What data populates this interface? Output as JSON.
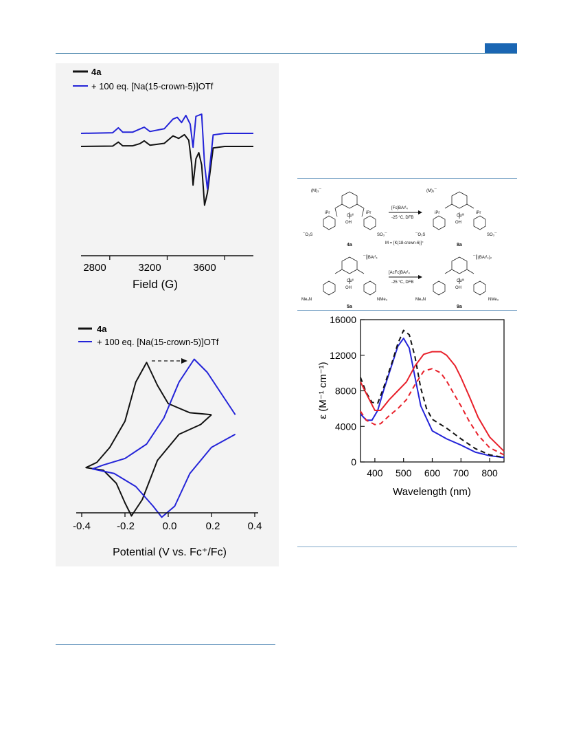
{
  "header": {
    "accent_color": "#1a66b3"
  },
  "epr_chart": {
    "legend": [
      "4a",
      "+ 100 eq. [Na(15-crown-5)]OTf"
    ],
    "xlabel": "Field  (G)",
    "ticks": [
      "2800",
      "3200",
      "3600"
    ]
  },
  "cv_chart": {
    "legend": [
      "4a",
      "+ 100 eq. [Na(15-crown-5)]OTf"
    ],
    "xlabel": "Potential (V vs. Fc⁺/Fc)",
    "ticks": [
      "-0.4",
      "-0.2",
      "0.0",
      "0.2",
      "0.4"
    ]
  },
  "scheme": {
    "label_4a": "4a",
    "label_8a": "8a",
    "label_5a": "5a",
    "label_9a": "9a",
    "arrow1_top": "[Fc]BArᶠ₄",
    "arrow1_bottom": "-25 °C, DFB",
    "arrow2_top": "[AcFc]BArᶠ₄",
    "arrow2_bottom": "-25 °C, DFB",
    "m_definition": "M = [K(18-crown-6)]⁺",
    "counter_4a": "(M)₃¯",
    "counter_8a": "(M)₃¯",
    "counter_5a": "¯┃BArᶠ₄",
    "counter_9a": "¯┃(BArᶠ₄)₂",
    "cu_ii": "Cuᴵᴵ",
    "cu_iii": "Cuᴵᴵᴵ",
    "oh": "OH",
    "ipr": "iPr",
    "so3": "SO₃¯",
    "o3s": "¯O₃S",
    "nme3": "NMe₃",
    "me3n": "Me₃N"
  },
  "chart_data": [
    {
      "type": "line",
      "xlabel": "Field  (G)",
      "ylabel": "",
      "xlim": [
        2600,
        3800
      ],
      "series": [
        {
          "name": "4a",
          "color": "#111111",
          "x": [
            2600,
            2820,
            2860,
            2890,
            2960,
            3010,
            3040,
            3080,
            3180,
            3240,
            3280,
            3320,
            3350,
            3370,
            3380,
            3400,
            3420,
            3440,
            3460,
            3480,
            3520,
            3600,
            3800
          ],
          "y": [
            0.0,
            0.01,
            0.14,
            0.02,
            0.02,
            0.09,
            0.18,
            0.04,
            0.1,
            0.34,
            0.26,
            0.38,
            0.2,
            -0.55,
            -1.25,
            -0.4,
            -0.2,
            -0.6,
            -1.9,
            -1.5,
            -0.05,
            0.0,
            0.0
          ]
        },
        {
          "name": "+ 100 eq. [Na(15-crown-5)]OTf",
          "color": "#2323d8",
          "x": [
            2600,
            2820,
            2860,
            2890,
            2960,
            3010,
            3040,
            3080,
            3180,
            3240,
            3270,
            3300,
            3330,
            3360,
            3380,
            3400,
            3440,
            3460,
            3480,
            3520,
            3600,
            3800
          ],
          "y": [
            0.0,
            0.02,
            0.18,
            0.04,
            0.04,
            0.14,
            0.2,
            0.06,
            0.15,
            0.46,
            0.52,
            0.35,
            0.58,
            0.3,
            -0.45,
            0.55,
            0.62,
            -1.0,
            -1.8,
            -0.05,
            0.0,
            0.0
          ]
        }
      ]
    },
    {
      "type": "line",
      "xlabel": "Potential (V vs. Fc⁺/Fc)",
      "ylabel": "",
      "xlim": [
        -0.4,
        0.4
      ],
      "series": [
        {
          "name": "4a",
          "color": "#111111",
          "x": [
            0.2,
            0.1,
            0.0,
            -0.05,
            -0.1,
            -0.15,
            -0.2,
            -0.27,
            -0.33,
            -0.38,
            -0.3,
            -0.24,
            -0.2,
            -0.17,
            -0.12,
            -0.05,
            0.05,
            0.15,
            0.2
          ],
          "y": [
            0.85,
            0.88,
            1.02,
            1.3,
            1.65,
            1.35,
            0.75,
            0.35,
            0.12,
            0.04,
            0.0,
            -0.2,
            -0.5,
            -0.7,
            -0.45,
            0.15,
            0.55,
            0.7,
            0.85
          ]
        },
        {
          "name": "+ 100 eq. [Na(15-crown-5)]OTf",
          "color": "#2323d8",
          "x": [
            0.31,
            0.25,
            0.18,
            0.12,
            0.05,
            -0.02,
            -0.1,
            -0.2,
            -0.3,
            -0.35,
            -0.25,
            -0.15,
            -0.07,
            -0.03,
            0.03,
            0.1,
            0.2,
            0.31
          ],
          "y": [
            0.85,
            1.15,
            1.5,
            1.7,
            1.35,
            0.8,
            0.4,
            0.18,
            0.08,
            0.02,
            -0.05,
            -0.25,
            -0.55,
            -0.72,
            -0.55,
            -0.05,
            0.35,
            0.55
          ]
        }
      ]
    },
    {
      "type": "line",
      "xlabel": "Wavelength (nm)",
      "ylabel": "ε (M⁻¹ cm⁻¹)",
      "xlim": [
        350,
        850
      ],
      "ylim": [
        0,
        16000
      ],
      "yticks": [
        "0",
        "4000",
        "8000",
        "12000",
        "16000"
      ],
      "xticks": [
        "400",
        "500",
        "600",
        "700",
        "800"
      ],
      "series": [
        {
          "color": "#2323d8",
          "dash": false,
          "x": [
            350,
            370,
            390,
            410,
            430,
            460,
            480,
            500,
            520,
            540,
            560,
            600,
            650,
            700,
            750,
            800,
            850
          ],
          "y": [
            5400,
            4700,
            4700,
            5800,
            8000,
            11000,
            13000,
            13900,
            12800,
            9500,
            6300,
            3500,
            2600,
            1900,
            1100,
            700,
            500
          ]
        },
        {
          "color": "#111111",
          "dash": true,
          "x": [
            350,
            370,
            390,
            410,
            430,
            460,
            480,
            500,
            520,
            540,
            560,
            580,
            600,
            650,
            700,
            750,
            800,
            850
          ],
          "y": [
            9500,
            7800,
            6700,
            6600,
            8300,
            11200,
            13300,
            14800,
            14300,
            11800,
            8300,
            6000,
            4800,
            3800,
            2600,
            1500,
            800,
            500
          ]
        },
        {
          "color": "#e8202a",
          "dash": false,
          "x": [
            350,
            370,
            400,
            420,
            450,
            480,
            510,
            540,
            570,
            600,
            630,
            650,
            680,
            700,
            730,
            760,
            800,
            850
          ],
          "y": [
            9000,
            7700,
            5800,
            5800,
            7000,
            8000,
            9000,
            10800,
            12100,
            12400,
            12400,
            12000,
            10800,
            9500,
            7300,
            5000,
            2800,
            1200
          ]
        },
        {
          "color": "#e8202a",
          "dash": true,
          "x": [
            350,
            370,
            400,
            420,
            450,
            480,
            510,
            540,
            570,
            600,
            630,
            650,
            680,
            700,
            730,
            760,
            800,
            850
          ],
          "y": [
            5700,
            4700,
            4200,
            4300,
            5200,
            6000,
            7000,
            8700,
            10200,
            10500,
            10000,
            9100,
            7400,
            6300,
            4500,
            3000,
            1600,
            800
          ]
        }
      ]
    }
  ]
}
